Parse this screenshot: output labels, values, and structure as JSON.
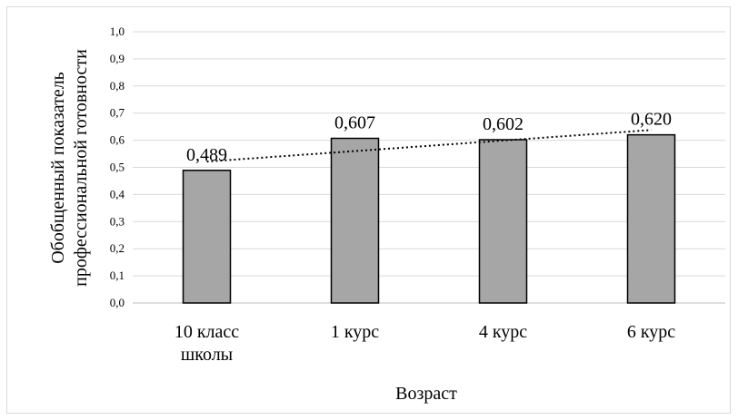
{
  "chart_data": {
    "type": "bar",
    "categories": [
      [
        "10 класс",
        "школы"
      ],
      [
        "1 курс"
      ],
      [
        "4 курс"
      ],
      [
        "6 курс"
      ]
    ],
    "values": [
      0.489,
      0.607,
      0.602,
      0.62
    ],
    "data_labels": [
      "0,489",
      "0,607",
      "0,602",
      "0,620"
    ],
    "xlabel": "Возраст",
    "ylabel": [
      "Обобщенный показатель",
      "профессиональной готовности"
    ],
    "ylim": [
      0,
      1.0
    ],
    "yticks": [
      "0,0",
      "0,1",
      "0,2",
      "0,3",
      "0,4",
      "0,5",
      "0,6",
      "0,7",
      "0,8",
      "0,9",
      "1,0"
    ],
    "grid": true,
    "legend": "none",
    "trendline": {
      "type": "linear",
      "style": "dotted"
    },
    "colors": {
      "bar_fill": "#a6a6a6",
      "bar_stroke": "#000000",
      "grid": "#d9d9d9",
      "trend": "#000000"
    }
  }
}
